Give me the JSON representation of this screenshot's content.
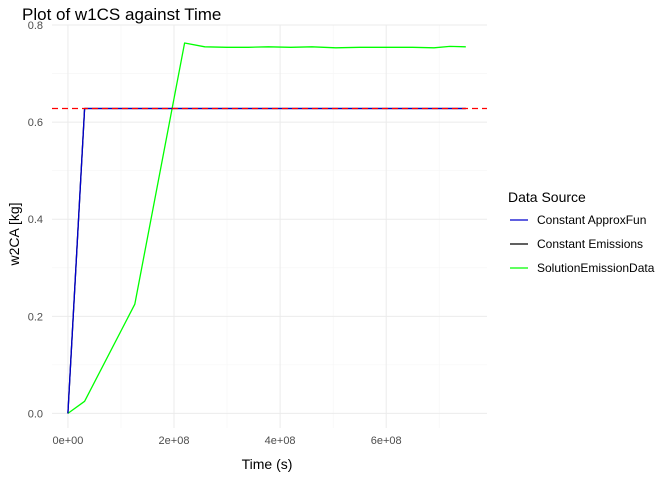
{
  "chart_data": {
    "type": "line",
    "title": "Plot of w1CS against Time",
    "xlabel": "Time (s)",
    "ylabel": "w2CA [kg]",
    "xlim": [
      -30000000,
      790000000
    ],
    "ylim": [
      -0.03,
      0.8
    ],
    "x_ticks": [
      0,
      200000000,
      400000000,
      600000000
    ],
    "x_tick_labels": [
      "0e+00",
      "2e+08",
      "4e+08",
      "6e+08"
    ],
    "y_ticks": [
      0.0,
      0.2,
      0.4,
      0.6,
      0.8
    ],
    "y_tick_labels": [
      "0.0",
      "0.2",
      "0.4",
      "0.6",
      "0.8"
    ],
    "grid": true,
    "legend": {
      "title": "Data Source",
      "position": "right",
      "entries": [
        {
          "label": "Constant ApproxFun",
          "color": "#0000cd"
        },
        {
          "label": "Constant Emissions",
          "color": "#000000"
        },
        {
          "label": "SolutionEmissionData",
          "color": "#00ff00"
        }
      ]
    },
    "hline": {
      "y": 0.628,
      "color": "#ff0000",
      "style": "dashed"
    },
    "series": [
      {
        "name": "Constant Emissions",
        "color": "#000000",
        "x": [
          0,
          31500000,
          750000000
        ],
        "y": [
          0.0,
          0.628,
          0.628
        ]
      },
      {
        "name": "Constant ApproxFun",
        "color": "#0000cd",
        "x": [
          0,
          31500000,
          750000000
        ],
        "y": [
          0.0,
          0.628,
          0.628
        ]
      },
      {
        "name": "SolutionEmissionData",
        "color": "#00ff00",
        "x": [
          0,
          31500000,
          126000000,
          220000000,
          258000000,
          300000000,
          340000000,
          378000000,
          420000000,
          460000000,
          505000000,
          550000000,
          600000000,
          650000000,
          690000000,
          720000000,
          750000000
        ],
        "y": [
          0.0,
          0.025,
          0.225,
          0.763,
          0.755,
          0.754,
          0.754,
          0.755,
          0.754,
          0.755,
          0.753,
          0.754,
          0.754,
          0.754,
          0.753,
          0.756,
          0.755
        ]
      }
    ]
  }
}
